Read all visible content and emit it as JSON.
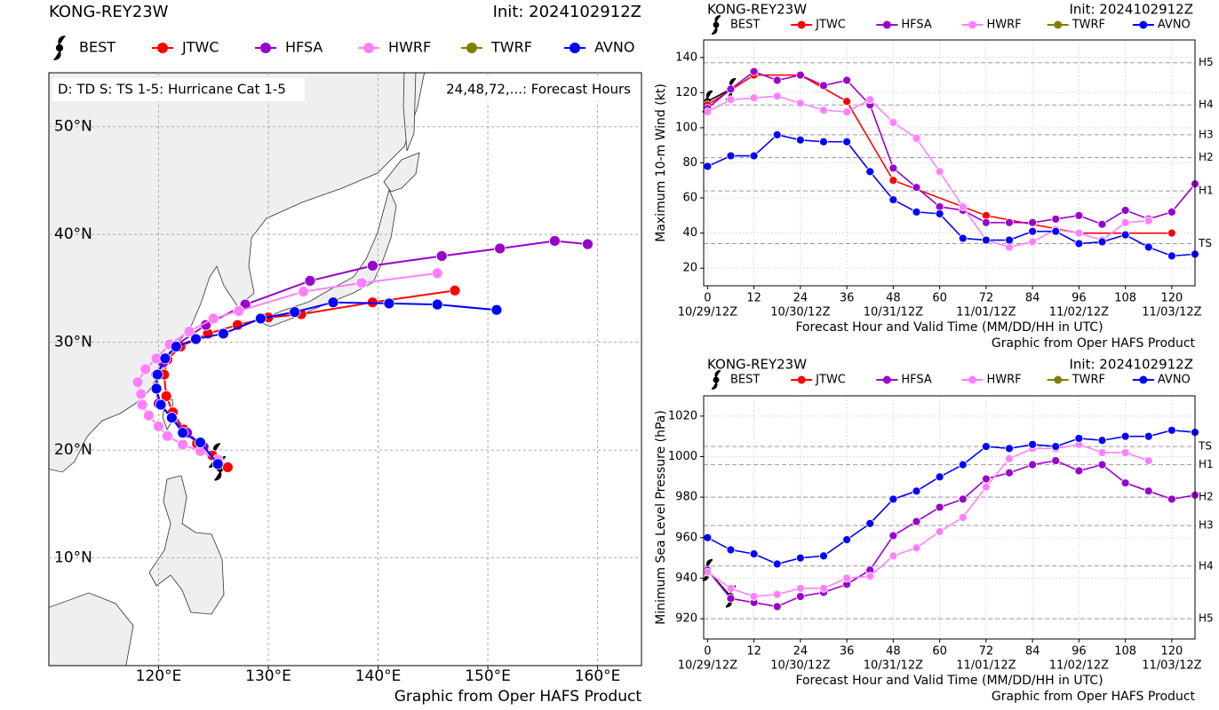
{
  "chart_data": [
    {
      "type": "map",
      "title": "KONG-REY23W",
      "init": "Init: 2024102912Z",
      "note_left": "D: TD  S: TS  1-5: Hurricane Cat 1-5",
      "note_right": "24,48,72,...: Forecast Hours",
      "source": "Graphic from Oper HAFS Product",
      "xlim": [
        110,
        164
      ],
      "ylim": [
        0,
        55
      ],
      "grid": true,
      "xticks": [
        {
          "value": 120,
          "label": "120°E"
        },
        {
          "value": 130,
          "label": "130°E"
        },
        {
          "value": 140,
          "label": "140°E"
        },
        {
          "value": 150,
          "label": "150°E"
        },
        {
          "value": 160,
          "label": "160°E"
        }
      ],
      "yticks": [
        {
          "value": 10,
          "label": "10°N"
        },
        {
          "value": 20,
          "label": "20°N"
        },
        {
          "value": 30,
          "label": "30°N"
        },
        {
          "value": 40,
          "label": "40°N"
        },
        {
          "value": 50,
          "label": "50°N"
        }
      ],
      "series": [
        {
          "name": "BEST",
          "color": "#000000",
          "x": [
            125.6,
            125.1
          ],
          "values": [
            18.3,
            19.5
          ]
        },
        {
          "name": "JTWC",
          "color": "#ff0000",
          "x": [
            126.3,
            124.9,
            123.5,
            122.3,
            121.3,
            120.7,
            120.5,
            120.8,
            122.0,
            124.5,
            127.2,
            130.0,
            133.0,
            139.5,
            147.0
          ],
          "values": [
            18.4,
            19.5,
            20.6,
            21.9,
            23.5,
            25.0,
            27.0,
            28.4,
            29.6,
            30.8,
            31.6,
            32.3,
            32.6,
            33.7,
            34.8
          ]
        },
        {
          "name": "HFSA",
          "color": "#9900cc",
          "x": [
            125.4,
            124.1,
            122.6,
            121.2,
            120.0,
            119.8,
            119.8,
            120.4,
            121.4,
            124.3,
            127.9,
            133.8,
            139.5,
            145.8,
            151.1,
            156.1,
            159.1
          ],
          "values": [
            18.9,
            20.3,
            21.6,
            23.0,
            24.3,
            25.7,
            27.0,
            28.1,
            29.6,
            31.6,
            33.5,
            35.7,
            37.1,
            38.0,
            38.7,
            39.4,
            39.1
          ]
        },
        {
          "name": "HWRF",
          "color": "#ff80ff",
          "x": [
            125.4,
            123.8,
            122.2,
            120.8,
            120.0,
            119.1,
            118.5,
            118.4,
            118.1,
            118.8,
            119.8,
            121.0,
            122.8,
            125.0,
            127.3,
            133.2,
            138.5,
            145.4
          ],
          "values": [
            19.1,
            19.9,
            20.5,
            21.3,
            22.2,
            23.2,
            24.2,
            25.2,
            26.3,
            27.5,
            28.5,
            29.8,
            31.0,
            32.2,
            32.9,
            34.7,
            35.5,
            36.4
          ]
        },
        {
          "name": "TWRF",
          "color": "#808000",
          "x": [],
          "values": []
        },
        {
          "name": "AVNO",
          "color": "#0000ff",
          "x": [
            125.4,
            123.8,
            122.2,
            121.2,
            120.2,
            119.8,
            119.9,
            120.6,
            121.6,
            123.4,
            125.9,
            129.3,
            132.4,
            135.9,
            141.0,
            145.4,
            150.8
          ],
          "values": [
            18.7,
            20.7,
            21.6,
            23.0,
            24.2,
            25.7,
            27.0,
            28.5,
            29.6,
            30.3,
            30.8,
            32.2,
            32.8,
            33.7,
            33.6,
            33.5,
            33.0
          ]
        }
      ]
    },
    {
      "type": "line",
      "title": "KONG-REY23W",
      "init": "Init: 2024102912Z",
      "xlabel": "Forecast Hour and Valid Time (MM/DD/HH in UTC)",
      "ylabel": "Maximum 10-m Wind (kt)",
      "source": "Graphic from Oper HAFS Product",
      "xlim": [
        -1,
        126
      ],
      "ylim": [
        10,
        150
      ],
      "grid": true,
      "xticks": [
        0,
        12,
        24,
        36,
        48,
        60,
        72,
        84,
        96,
        108,
        120
      ],
      "date_labels": [
        {
          "value": 0,
          "label": "10/29/12Z"
        },
        {
          "value": 24,
          "label": "10/30/12Z"
        },
        {
          "value": 48,
          "label": "10/31/12Z"
        },
        {
          "value": 72,
          "label": "11/01/12Z"
        },
        {
          "value": 96,
          "label": "11/02/12Z"
        },
        {
          "value": 120,
          "label": "11/03/12Z"
        }
      ],
      "yticks": [
        20,
        40,
        60,
        80,
        100,
        120,
        140
      ],
      "category_lines": [
        {
          "value": 137,
          "label": "H5"
        },
        {
          "value": 113,
          "label": "H4"
        },
        {
          "value": 96,
          "label": "H3"
        },
        {
          "value": 83,
          "label": "H2"
        },
        {
          "value": 64,
          "label": "H1"
        },
        {
          "value": 34,
          "label": "TS"
        }
      ],
      "series": [
        {
          "name": "BEST",
          "color": "#000000",
          "x": [
            0,
            6
          ],
          "values": [
            115,
            122
          ]
        },
        {
          "name": "JTWC",
          "color": "#ff0000",
          "x": [
            0,
            12,
            24,
            36,
            48,
            72,
            96,
            120
          ],
          "values": [
            113,
            130,
            130,
            115,
            70,
            50,
            40,
            40
          ]
        },
        {
          "name": "HFSA",
          "color": "#9900cc",
          "x": [
            0,
            6,
            12,
            18,
            24,
            30,
            36,
            42,
            48,
            54,
            60,
            66,
            72,
            78,
            84,
            90,
            96,
            102,
            108,
            114,
            120,
            126
          ],
          "values": [
            111,
            122,
            132,
            127,
            130,
            124,
            127,
            113,
            77,
            66,
            55,
            53,
            46,
            46,
            46,
            48,
            50,
            45,
            53,
            48,
            52,
            68
          ]
        },
        {
          "name": "HWRF",
          "color": "#ff80ff",
          "x": [
            0,
            6,
            12,
            18,
            24,
            30,
            36,
            42,
            48,
            54,
            60,
            66,
            72,
            78,
            84,
            90,
            96,
            102,
            108,
            114
          ],
          "values": [
            109,
            116,
            117,
            118,
            114,
            110,
            109,
            116,
            103,
            94,
            75,
            55,
            36,
            32,
            35,
            42,
            40,
            36,
            46,
            47
          ]
        },
        {
          "name": "TWRF",
          "color": "#808000",
          "x": [],
          "values": []
        },
        {
          "name": "AVNO",
          "color": "#0000ff",
          "x": [
            0,
            6,
            12,
            18,
            24,
            30,
            36,
            42,
            48,
            54,
            60,
            66,
            72,
            78,
            84,
            90,
            96,
            102,
            108,
            114,
            120,
            126
          ],
          "values": [
            78,
            84,
            84,
            96,
            93,
            92,
            92,
            75,
            59,
            52,
            51,
            37,
            36,
            36,
            41,
            41,
            34,
            35,
            39,
            32,
            27,
            28
          ]
        }
      ]
    },
    {
      "type": "line",
      "title": "KONG-REY23W",
      "init": "Init: 2024102912Z",
      "xlabel": "Forecast Hour and Valid Time (MM/DD/HH in UTC)",
      "ylabel": "Minimum Sea Level Pressure (hPa)",
      "source": "Graphic from Oper HAFS Product",
      "xlim": [
        -1,
        126
      ],
      "ylim": [
        910,
        1030
      ],
      "grid": true,
      "xticks": [
        0,
        12,
        24,
        36,
        48,
        60,
        72,
        84,
        96,
        108,
        120
      ],
      "date_labels": [
        {
          "value": 0,
          "label": "10/29/12Z"
        },
        {
          "value": 24,
          "label": "10/30/12Z"
        },
        {
          "value": 48,
          "label": "10/31/12Z"
        },
        {
          "value": 72,
          "label": "11/01/12Z"
        },
        {
          "value": 96,
          "label": "11/02/12Z"
        },
        {
          "value": 120,
          "label": "11/03/12Z"
        }
      ],
      "yticks": [
        920,
        940,
        960,
        980,
        1000,
        1020
      ],
      "category_lines": [
        {
          "value": 1005,
          "label": "TS"
        },
        {
          "value": 996,
          "label": "H1"
        },
        {
          "value": 980,
          "label": "H2"
        },
        {
          "value": 966,
          "label": "H3"
        },
        {
          "value": 946,
          "label": "H4"
        },
        {
          "value": 920,
          "label": "H5"
        }
      ],
      "series": [
        {
          "name": "BEST",
          "color": "#000000",
          "x": [
            0,
            6
          ],
          "values": [
            944,
            931
          ]
        },
        {
          "name": "JTWC",
          "color": "#ff0000",
          "x": [],
          "values": []
        },
        {
          "name": "HFSA",
          "color": "#9900cc",
          "x": [
            0,
            6,
            12,
            18,
            24,
            30,
            36,
            42,
            48,
            54,
            60,
            66,
            72,
            78,
            84,
            90,
            96,
            102,
            108,
            114,
            120,
            126
          ],
          "values": [
            944,
            930,
            928,
            926,
            931,
            933,
            937,
            944,
            961,
            968,
            975,
            979,
            989,
            992,
            996,
            998,
            993,
            996,
            987,
            983,
            979,
            981
          ]
        },
        {
          "name": "HWRF",
          "color": "#ff80ff",
          "x": [
            0,
            6,
            12,
            18,
            24,
            30,
            36,
            42,
            48,
            54,
            60,
            66,
            72,
            78,
            84,
            90,
            96,
            102,
            108,
            114
          ],
          "values": [
            943,
            935,
            931,
            932,
            935,
            935,
            940,
            941,
            951,
            955,
            963,
            970,
            985,
            999,
            1004,
            1004,
            1006,
            1002,
            1002,
            998
          ]
        },
        {
          "name": "TWRF",
          "color": "#808000",
          "x": [],
          "values": []
        },
        {
          "name": "AVNO",
          "color": "#0000ff",
          "x": [
            0,
            6,
            12,
            18,
            24,
            30,
            36,
            42,
            48,
            54,
            60,
            66,
            72,
            78,
            84,
            90,
            96,
            102,
            108,
            114,
            120,
            126
          ],
          "values": [
            960,
            954,
            952,
            947,
            950,
            951,
            959,
            967,
            979,
            983,
            990,
            996,
            1005,
            1004,
            1006,
            1005,
            1009,
            1008,
            1010,
            1010,
            1013,
            1012
          ]
        }
      ]
    }
  ]
}
